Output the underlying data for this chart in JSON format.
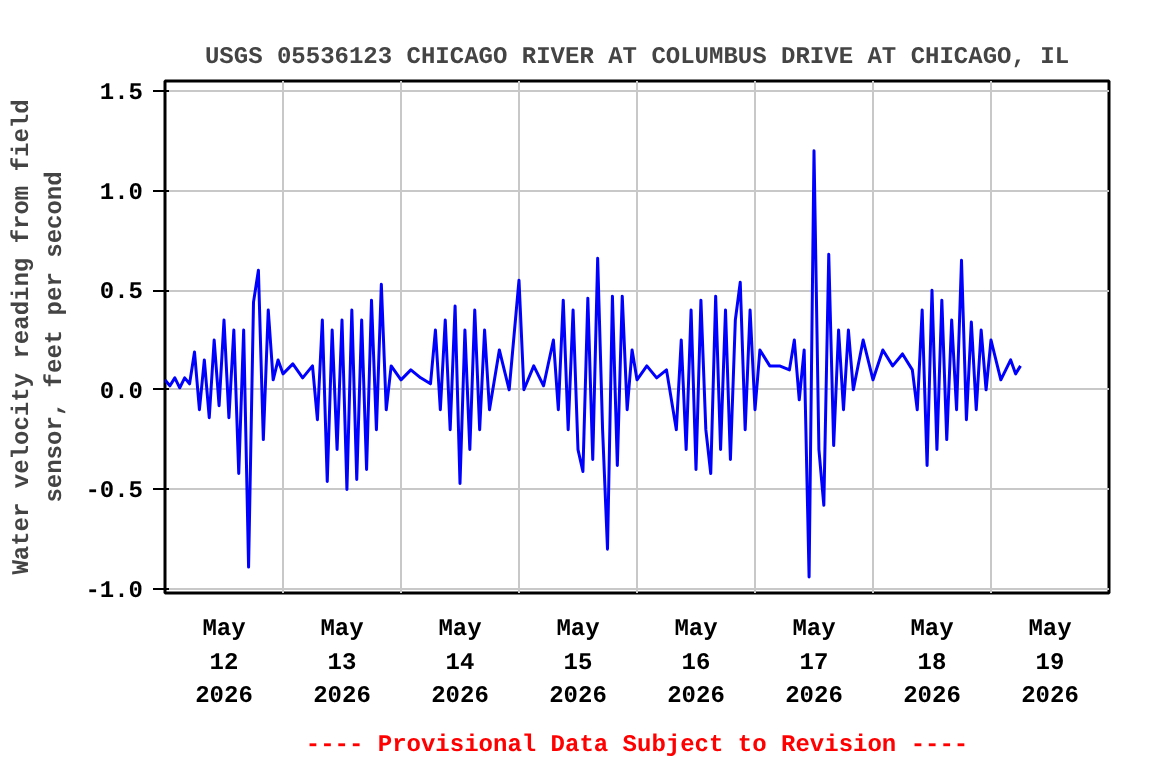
{
  "chart_data": {
    "type": "line",
    "title": "USGS 05536123 CHICAGO RIVER AT COLUMBUS DRIVE AT CHICAGO, IL",
    "ylabel": "Water velocity reading from field\nsensor, feet per second",
    "annotations": [
      "---- Provisional Data Subject to Revision ----"
    ],
    "xlim": [
      "2026-05-12",
      "2026-05-20"
    ],
    "xticks": [
      {
        "value": "2026-05-12T12:00",
        "label": "May\n12\n2026"
      },
      {
        "value": "2026-05-13T12:00",
        "label": "May\n13\n2026"
      },
      {
        "value": "2026-05-14T12:00",
        "label": "May\n14\n2026"
      },
      {
        "value": "2026-05-15T12:00",
        "label": "May\n15\n2026"
      },
      {
        "value": "2026-05-16T12:00",
        "label": "May\n16\n2026"
      },
      {
        "value": "2026-05-17T12:00",
        "label": "May\n17\n2026"
      },
      {
        "value": "2026-05-18T12:00",
        "label": "May\n18\n2026"
      },
      {
        "value": "2026-05-19T12:00",
        "label": "May\n19\n2026"
      },
      {
        "value": "2026-05-13",
        "label": null
      },
      {
        "value": "2026-05-14",
        "label": null
      },
      {
        "value": "2026-05-15",
        "label": null
      },
      {
        "value": "2026-05-16",
        "label": null
      },
      {
        "value": "2026-05-17",
        "label": null
      },
      {
        "value": "2026-05-18",
        "label": null
      },
      {
        "value": "2026-05-19",
        "label": null
      }
    ],
    "ylim": [
      -1.02,
      1.55
    ],
    "yticks": [
      {
        "value": -1.0,
        "label": "-1.0"
      },
      {
        "value": -0.5,
        "label": "-0.5"
      },
      {
        "value": 0.0,
        "label": "0.0"
      },
      {
        "value": 0.5,
        "label": "0.5"
      },
      {
        "value": 1.0,
        "label": "1.0"
      },
      {
        "value": 1.5,
        "label": "1.5"
      }
    ],
    "grid": true,
    "marker": "none",
    "line_style": "solid",
    "series": [
      {
        "color": "#0000ff",
        "x": [
          "2026-05-12T00:00",
          "2026-05-12T01:00",
          "2026-05-12T02:00",
          "2026-05-12T03:00",
          "2026-05-12T04:00",
          "2026-05-12T05:00",
          "2026-05-12T06:00",
          "2026-05-12T07:00",
          "2026-05-12T08:00",
          "2026-05-12T09:00",
          "2026-05-12T10:00",
          "2026-05-12T11:00",
          "2026-05-12T12:00",
          "2026-05-12T13:00",
          "2026-05-12T14:00",
          "2026-05-12T15:00",
          "2026-05-12T16:00",
          "2026-05-12T17:00",
          "2026-05-12T18:00",
          "2026-05-12T19:00",
          "2026-05-12T20:00",
          "2026-05-12T21:00",
          "2026-05-12T22:00",
          "2026-05-12T23:00",
          "2026-05-13T00:00",
          "2026-05-13T02:00",
          "2026-05-13T04:00",
          "2026-05-13T06:00",
          "2026-05-13T07:00",
          "2026-05-13T08:00",
          "2026-05-13T09:00",
          "2026-05-13T10:00",
          "2026-05-13T11:00",
          "2026-05-13T12:00",
          "2026-05-13T13:00",
          "2026-05-13T14:00",
          "2026-05-13T15:00",
          "2026-05-13T16:00",
          "2026-05-13T17:00",
          "2026-05-13T18:00",
          "2026-05-13T19:00",
          "2026-05-13T20:00",
          "2026-05-13T21:00",
          "2026-05-13T22:00",
          "2026-05-14T00:00",
          "2026-05-14T02:00",
          "2026-05-14T04:00",
          "2026-05-14T06:00",
          "2026-05-14T07:00",
          "2026-05-14T08:00",
          "2026-05-14T09:00",
          "2026-05-14T10:00",
          "2026-05-14T11:00",
          "2026-05-14T12:00",
          "2026-05-14T13:00",
          "2026-05-14T14:00",
          "2026-05-14T15:00",
          "2026-05-14T16:00",
          "2026-05-14T17:00",
          "2026-05-14T18:00",
          "2026-05-14T20:00",
          "2026-05-14T22:00",
          "2026-05-15T00:00",
          "2026-05-15T01:00",
          "2026-05-15T03:00",
          "2026-05-15T05:00",
          "2026-05-15T07:00",
          "2026-05-15T08:00",
          "2026-05-15T09:00",
          "2026-05-15T10:00",
          "2026-05-15T11:00",
          "2026-05-15T12:00",
          "2026-05-15T13:00",
          "2026-05-15T14:00",
          "2026-05-15T15:00",
          "2026-05-15T16:00",
          "2026-05-15T17:00",
          "2026-05-15T18:00",
          "2026-05-15T19:00",
          "2026-05-15T20:00",
          "2026-05-15T21:00",
          "2026-05-15T22:00",
          "2026-05-15T23:00",
          "2026-05-16T00:00",
          "2026-05-16T02:00",
          "2026-05-16T04:00",
          "2026-05-16T06:00",
          "2026-05-16T08:00",
          "2026-05-16T09:00",
          "2026-05-16T10:00",
          "2026-05-16T11:00",
          "2026-05-16T12:00",
          "2026-05-16T13:00",
          "2026-05-16T14:00",
          "2026-05-16T15:00",
          "2026-05-16T16:00",
          "2026-05-16T17:00",
          "2026-05-16T18:00",
          "2026-05-16T19:00",
          "2026-05-16T20:00",
          "2026-05-16T21:00",
          "2026-05-16T22:00",
          "2026-05-16T23:00",
          "2026-05-17T00:00",
          "2026-05-17T01:00",
          "2026-05-17T03:00",
          "2026-05-17T05:00",
          "2026-05-17T07:00",
          "2026-05-17T08:00",
          "2026-05-17T09:00",
          "2026-05-17T10:00",
          "2026-05-17T11:00",
          "2026-05-17T12:00",
          "2026-05-17T13:00",
          "2026-05-17T14:00",
          "2026-05-17T15:00",
          "2026-05-17T16:00",
          "2026-05-17T17:00",
          "2026-05-17T18:00",
          "2026-05-17T19:00",
          "2026-05-17T20:00",
          "2026-05-17T22:00",
          "2026-05-18T00:00",
          "2026-05-18T02:00",
          "2026-05-18T04:00",
          "2026-05-18T06:00",
          "2026-05-18T08:00",
          "2026-05-18T09:00",
          "2026-05-18T10:00",
          "2026-05-18T11:00",
          "2026-05-18T12:00",
          "2026-05-18T13:00",
          "2026-05-18T14:00",
          "2026-05-18T15:00",
          "2026-05-18T16:00",
          "2026-05-18T17:00",
          "2026-05-18T18:00",
          "2026-05-18T19:00",
          "2026-05-18T20:00",
          "2026-05-18T21:00",
          "2026-05-18T22:00",
          "2026-05-18T23:00",
          "2026-05-19T00:00",
          "2026-05-19T02:00",
          "2026-05-19T04:00",
          "2026-05-19T05:00",
          "2026-05-19T06:00"
        ],
        "values": [
          0.05,
          0.02,
          0.06,
          0.01,
          0.06,
          0.03,
          0.19,
          -0.1,
          0.15,
          -0.14,
          0.25,
          -0.08,
          0.35,
          -0.14,
          0.3,
          -0.42,
          0.3,
          -0.89,
          0.44,
          0.6,
          -0.25,
          0.4,
          0.05,
          0.15,
          0.08,
          0.13,
          0.06,
          0.12,
          -0.15,
          0.35,
          -0.46,
          0.3,
          -0.3,
          0.35,
          -0.5,
          0.4,
          -0.45,
          0.35,
          -0.4,
          0.45,
          -0.2,
          0.53,
          -0.1,
          0.12,
          0.05,
          0.1,
          0.06,
          0.03,
          0.3,
          -0.1,
          0.35,
          -0.2,
          0.42,
          -0.47,
          0.3,
          -0.3,
          0.4,
          -0.2,
          0.3,
          -0.1,
          0.2,
          0.0,
          0.55,
          0.0,
          0.12,
          0.02,
          0.25,
          -0.1,
          0.45,
          -0.2,
          0.4,
          -0.3,
          -0.41,
          0.46,
          -0.35,
          0.66,
          -0.2,
          -0.8,
          0.47,
          -0.38,
          0.47,
          -0.1,
          0.2,
          0.05,
          0.12,
          0.06,
          0.1,
          -0.2,
          0.25,
          -0.3,
          0.4,
          -0.4,
          0.45,
          -0.2,
          -0.42,
          0.47,
          -0.3,
          0.4,
          -0.35,
          0.35,
          0.54,
          -0.2,
          0.4,
          -0.1,
          0.2,
          0.12,
          0.12,
          0.1,
          0.25,
          -0.05,
          0.2,
          -0.94,
          1.2,
          -0.3,
          -0.58,
          0.68,
          -0.28,
          0.3,
          -0.1,
          0.3,
          0.0,
          0.25,
          0.05,
          0.2,
          0.12,
          0.18,
          0.1,
          -0.1,
          0.4,
          -0.38,
          0.5,
          -0.3,
          0.45,
          -0.25,
          0.35,
          -0.1,
          0.65,
          -0.15,
          0.34,
          -0.1,
          0.3,
          0.0,
          0.25,
          0.05,
          0.15,
          0.08,
          0.12
        ]
      }
    ]
  }
}
